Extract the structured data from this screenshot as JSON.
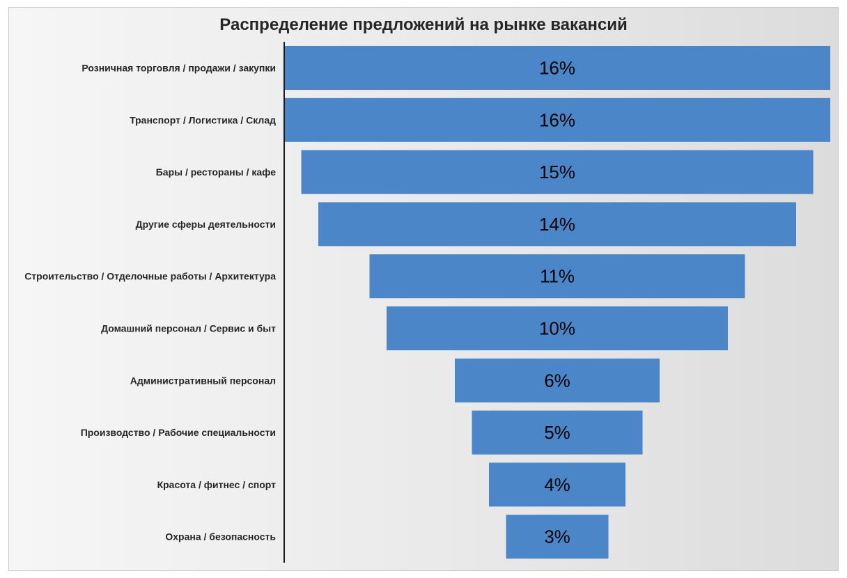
{
  "chart_data": {
    "type": "bar",
    "orientation": "horizontal-funnel",
    "title": "Распределение предложений на рынке вакансий",
    "xlabel": "",
    "ylabel": "",
    "grid": false,
    "legend": "none",
    "bar_color": "#4a86c8",
    "categories": [
      "Розничная торговля / продажи / закупки",
      "Транспорт / Логистика / Склад",
      "Бары / рестораны / кафе",
      "Другие сферы деятельности",
      "Строительство / Отделочные работы / Архитектура",
      "Домашний персонал / Сервис и быт",
      "Административный персонал",
      "Производство / Рабочие специальности",
      "Красота / фитнес / спорт",
      "Охрана / безопасность"
    ],
    "values": [
      16,
      16,
      15,
      14,
      11,
      10,
      6,
      5,
      4,
      3
    ],
    "value_labels": [
      "16%",
      "16%",
      "15%",
      "14%",
      "11%",
      "10%",
      "6%",
      "5%",
      "4%",
      "3%"
    ]
  }
}
